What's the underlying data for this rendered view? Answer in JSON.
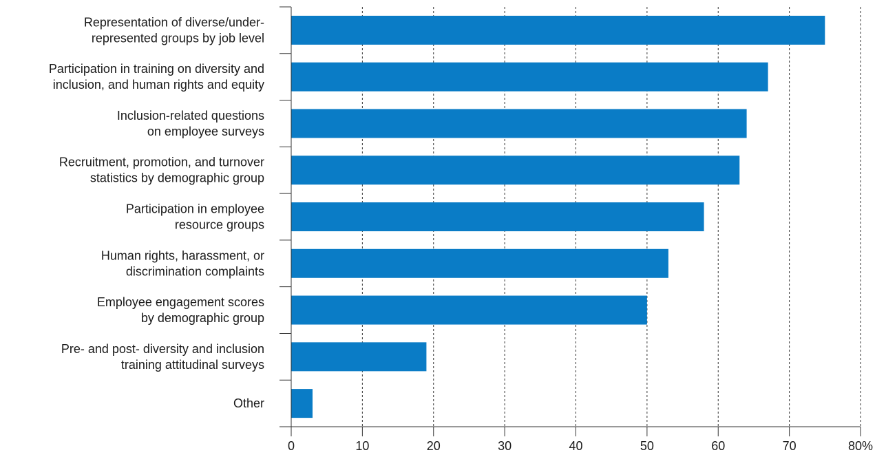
{
  "chart_data": {
    "type": "bar",
    "orientation": "horizontal",
    "categories": [
      [
        "Representation of diverse/under-",
        "represented groups by job level"
      ],
      [
        "Participation in training on diversity and",
        "inclusion, and human rights and equity"
      ],
      [
        "Inclusion-related questions",
        "on employee surveys"
      ],
      [
        "Recruitment, promotion, and turnover",
        "statistics by demographic group"
      ],
      [
        "Participation in employee",
        "resource groups"
      ],
      [
        "Human rights, harassment, or",
        "discrimination complaints"
      ],
      [
        "Employee engagement scores",
        "by demographic group"
      ],
      [
        "Pre- and post- diversity and inclusion",
        "training attitudinal surveys"
      ],
      [
        "Other"
      ]
    ],
    "values": [
      75,
      67,
      64,
      63,
      58,
      53,
      50,
      19,
      3
    ],
    "xlim": [
      0,
      80
    ],
    "xticks": [
      0,
      10,
      20,
      30,
      40,
      50,
      60,
      70,
      80
    ],
    "xtick_labels": [
      "0",
      "10",
      "20",
      "30",
      "40",
      "50",
      "60",
      "70",
      "80%"
    ],
    "grid": "vertical dashed",
    "bar_color": "#0a7cc6",
    "title": "",
    "xlabel": "",
    "ylabel": ""
  }
}
